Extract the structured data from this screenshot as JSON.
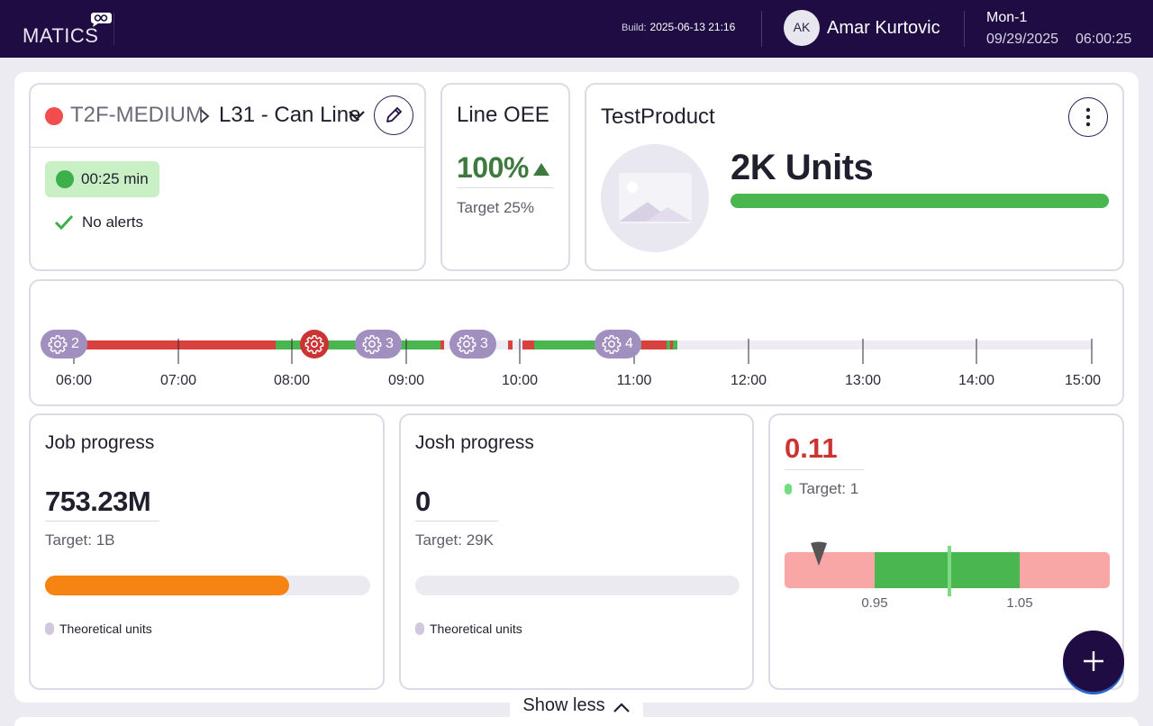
{
  "header": {
    "logo_text": "MATICS",
    "build_label": "Build:",
    "build_value": "2025-06-13 21:16",
    "user_initials": "AK",
    "user_name": "Amar Kurtovic",
    "shift": "Mon-1",
    "date": "09/29/2025",
    "time": "06:00:25"
  },
  "line_card": {
    "status_color": "#f24d4d",
    "site": "T2F-MEDIUM",
    "line": "L31 - Can Line",
    "timer": "00:25 min",
    "alerts": "No alerts"
  },
  "oee_card": {
    "title": "Line OEE",
    "value": "100%",
    "trend": "up",
    "target": "Target 25%"
  },
  "product_card": {
    "title": "TestProduct",
    "units": "2K Units",
    "progress_percent": 100
  },
  "timeline": {
    "ticks": [
      "06:00",
      "07:00",
      "08:00",
      "09:00",
      "10:00",
      "11:00",
      "12:00",
      "13:00",
      "14:00",
      "15:00"
    ],
    "badges": [
      {
        "count": "2",
        "type": "changeover"
      },
      {
        "count": "",
        "type": "stop"
      },
      {
        "count": "3",
        "type": "changeover"
      },
      {
        "count": "3",
        "type": "changeover"
      },
      {
        "count": "4",
        "type": "changeover"
      }
    ]
  },
  "job_progress": {
    "title": "Job progress",
    "value": "753.23M",
    "target": "Target: 1B",
    "progress_percent": 75,
    "legend": "Theoretical units"
  },
  "josh_progress": {
    "title": "Josh progress",
    "value": "0",
    "target": "Target: 29K",
    "progress_percent": 0,
    "legend": "Theoretical units"
  },
  "gauge": {
    "value": "0.11",
    "target": "Target: 1",
    "low_label": "0.95",
    "high_label": "1.05"
  },
  "footer": {
    "show_less": "Show less"
  },
  "colors": {
    "brand": "#1f0c43",
    "good": "#4ab64f",
    "bad": "#cc3434",
    "warn": "#f68412",
    "accent": "#a18fbf"
  }
}
